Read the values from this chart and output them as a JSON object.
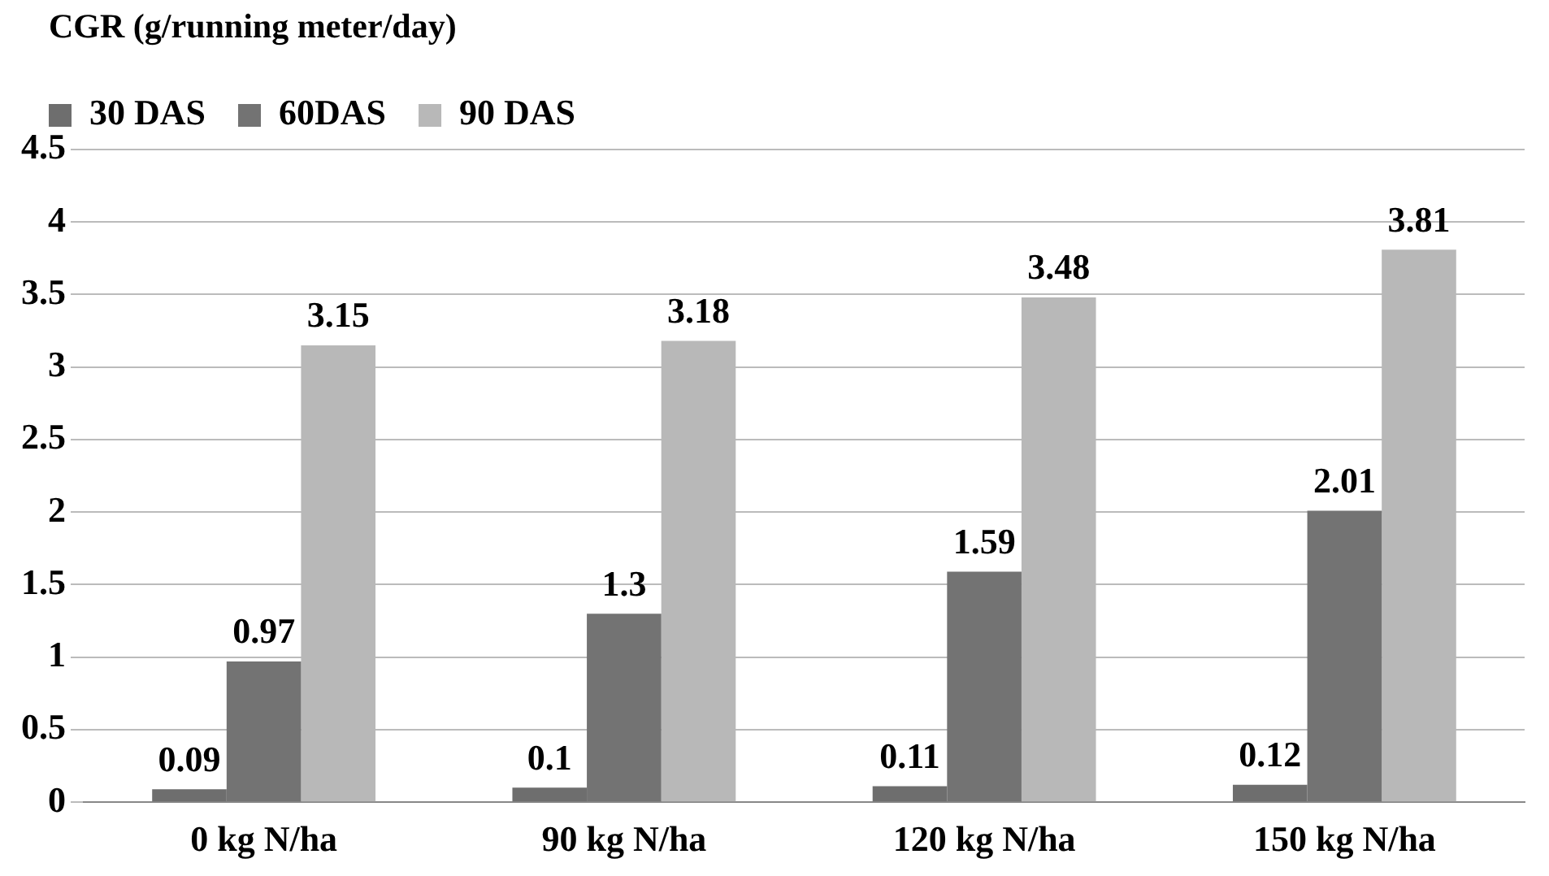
{
  "chart_data": {
    "type": "bar",
    "ylabel": "CGR (g/running meter/day)",
    "categories": [
      "0 kg N/ha",
      "90 kg N/ha",
      "120 kg N/ha",
      "150 kg N/ha"
    ],
    "series": [
      {
        "name": "30 DAS",
        "color": "#6e6e6e",
        "values": [
          0.09,
          0.1,
          0.11,
          0.12
        ]
      },
      {
        "name": "60DAS",
        "color": "#737373",
        "values": [
          0.97,
          1.3,
          1.59,
          2.01
        ]
      },
      {
        "name": "90 DAS",
        "color": "#b8b8b8",
        "values": [
          3.15,
          3.18,
          3.48,
          3.81
        ]
      }
    ],
    "ylim": [
      0,
      4.5
    ],
    "yticks": [
      0,
      0.5,
      1,
      1.5,
      2,
      2.5,
      3,
      3.5,
      4,
      4.5
    ],
    "grid": "y",
    "legend": "top",
    "data_labels": true
  }
}
